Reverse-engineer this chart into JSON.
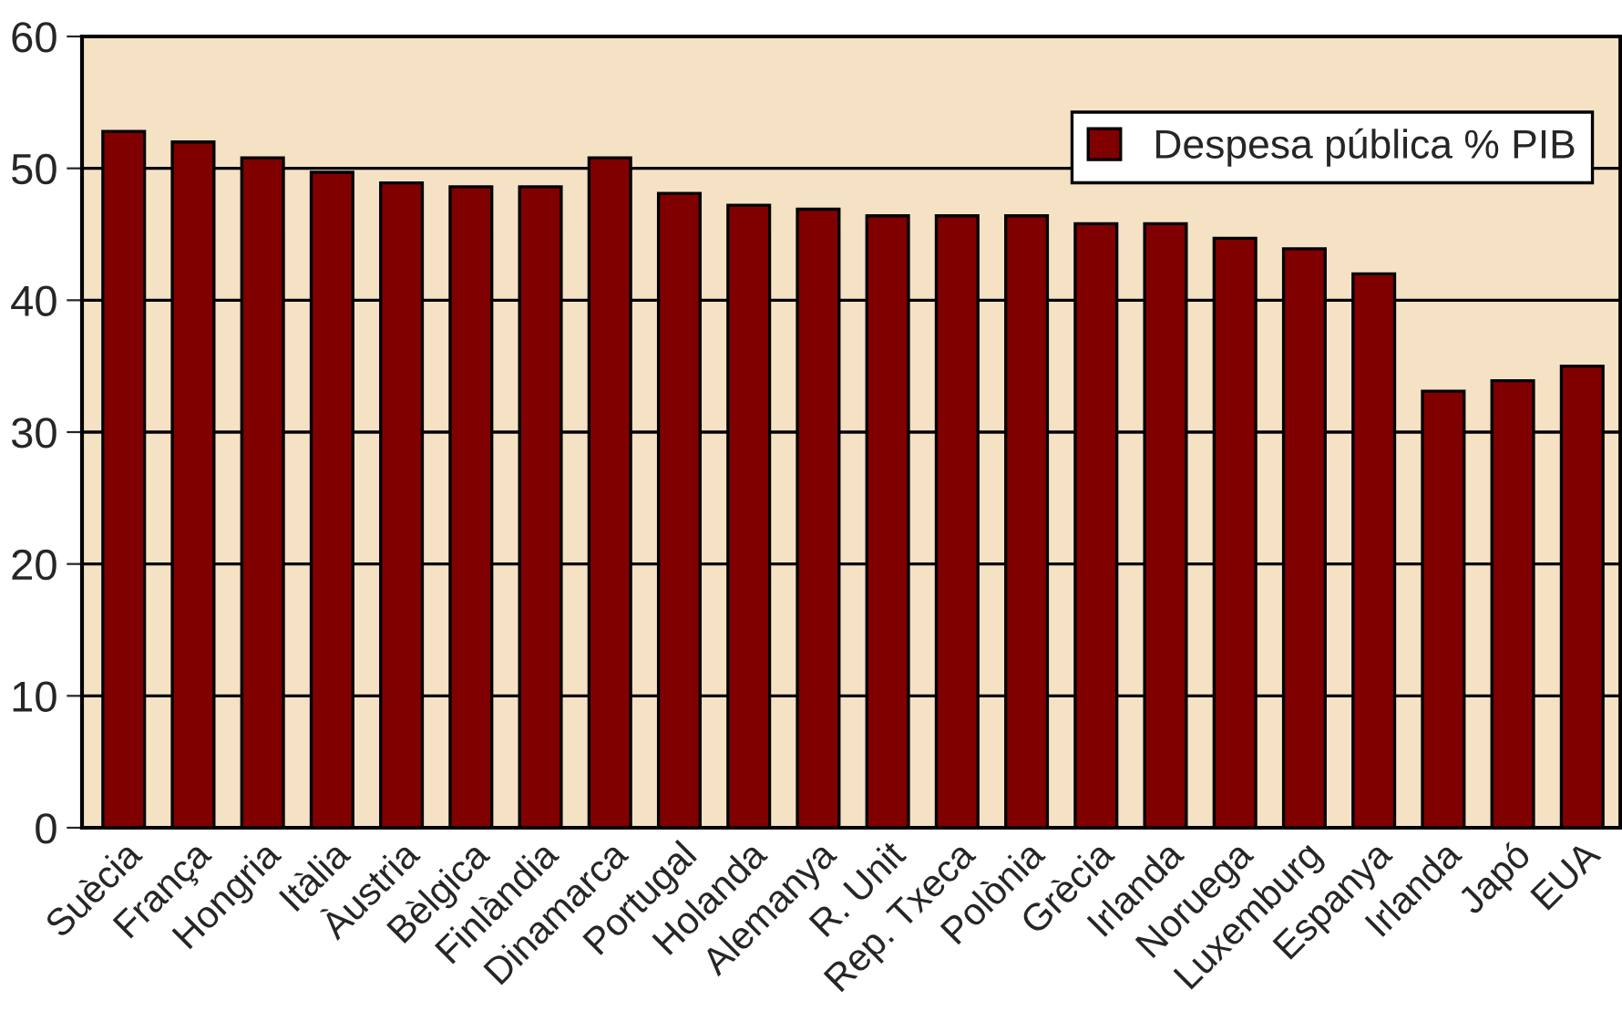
{
  "chart_data": {
    "type": "bar",
    "categories": [
      "Suècia",
      "França",
      "Hongria",
      "Itàlia",
      "Àustria",
      "Bèlgica",
      "Finlàndia",
      "Dinamarca",
      "Portugal",
      "Holanda",
      "Alemanya",
      "R. Unit",
      "Rep. Txeca",
      "Polònia",
      "Grècia",
      "Irlanda",
      "Noruega",
      "Luxemburg",
      "Espanya",
      "Irlanda",
      "Japó",
      "EUA"
    ],
    "series": [
      {
        "name": "Despesa pública % PIB",
        "color": "#800000",
        "values": [
          52.8,
          52.0,
          50.8,
          49.7,
          48.9,
          48.6,
          48.6,
          50.8,
          48.1,
          47.2,
          46.9,
          46.4,
          46.4,
          46.4,
          45.8,
          45.8,
          44.7,
          43.9,
          42.0,
          33.1,
          33.9,
          35.0
        ]
      }
    ],
    "ylim": [
      0,
      60
    ],
    "yticks": [
      0,
      10,
      20,
      30,
      40,
      50,
      60
    ],
    "grid": "y",
    "legend": "top right"
  }
}
